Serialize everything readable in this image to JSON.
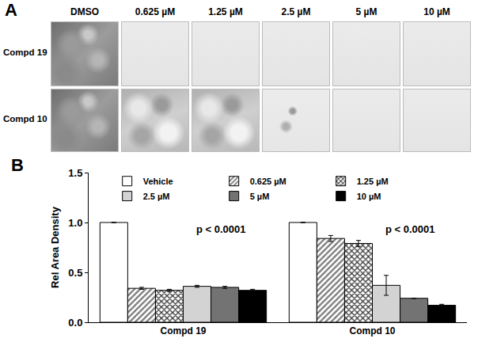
{
  "panel_labels": [
    "A",
    "B"
  ],
  "images": {
    "columns": [
      "DMSO",
      "0.625 µM",
      "1.25 µM",
      "2.5 µM",
      "5 µM",
      "10 µM"
    ],
    "rows": [
      "Compd 19",
      "Compd 10"
    ]
  },
  "chart_data": {
    "type": "bar",
    "categories": [
      "Compd 19",
      "Compd 10"
    ],
    "y_label": "Rel Area Density",
    "ylim": [
      0,
      1.5
    ],
    "yticks": [
      {
        "value": 0,
        "label": "0.0"
      },
      {
        "value": 0.5,
        "label": "0.5"
      },
      {
        "value": 1,
        "label": "1.0"
      },
      {
        "value": 1.5,
        "label": "1.5"
      }
    ],
    "grid": false,
    "annotations": [
      {
        "text": "p < 0.0001",
        "category": "Compd 19"
      },
      {
        "text": "p < 0.0001",
        "category": "Compd 10"
      }
    ],
    "series": [
      {
        "name": "Vehicle",
        "color": "#ffffff",
        "marker": "solid",
        "values": [
          1.0,
          1.0
        ],
        "errors": [
          0,
          0
        ]
      },
      {
        "name": "0.625 µM",
        "color": "#777777",
        "marker": "hatch",
        "values": [
          0.34,
          0.84
        ],
        "errors": [
          0.01,
          0.03
        ]
      },
      {
        "name": "1.25 µM",
        "color": "#333333",
        "marker": "crosshatch",
        "values": [
          0.32,
          0.79
        ],
        "errors": [
          0.01,
          0.03
        ]
      },
      {
        "name": "2.5 µM",
        "color": "#d3d3d3",
        "marker": "solid",
        "values": [
          0.36,
          0.37
        ],
        "errors": [
          0.01,
          0.1
        ]
      },
      {
        "name": "5 µM",
        "color": "#737373",
        "marker": "solid",
        "values": [
          0.35,
          0.24
        ],
        "errors": [
          0.01,
          0
        ]
      },
      {
        "name": "10 µM",
        "color": "#000000",
        "marker": "solid",
        "values": [
          0.32,
          0.17
        ],
        "errors": [
          0.01,
          0.01
        ]
      }
    ]
  }
}
